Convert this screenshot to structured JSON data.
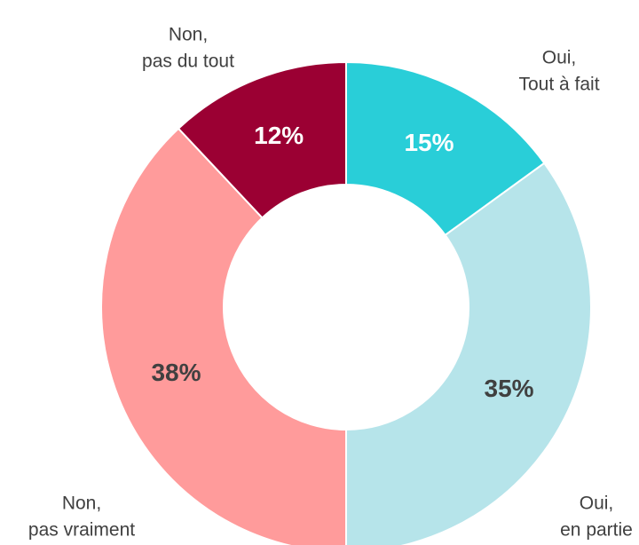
{
  "chart_data": {
    "type": "donut",
    "categories": [
      [
        "Oui,",
        "Tout à fait"
      ],
      [
        "Oui,",
        "en partie"
      ],
      [
        "Non,",
        "pas vraiment"
      ],
      [
        "Non,",
        "pas du tout"
      ]
    ],
    "values": [
      15,
      35,
      38,
      12
    ],
    "value_labels": [
      "15%",
      "35%",
      "38%",
      "12%"
    ],
    "colors": [
      "#29ced8",
      "#b6e4ea",
      "#ff9b9b",
      "#9b0033"
    ],
    "label_colors": [
      "#ffffff",
      "#404040",
      "#404040",
      "#ffffff"
    ]
  }
}
